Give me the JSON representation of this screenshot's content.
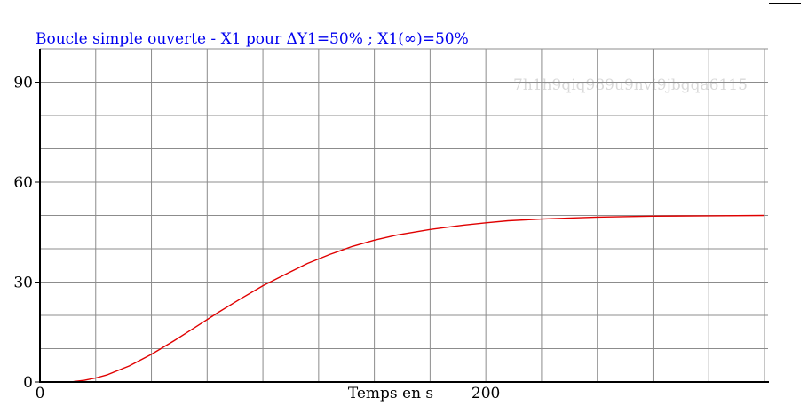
{
  "chart_data": {
    "type": "line",
    "title": "Boucle simple ouverte - X1 pour ΔY1=50% ; X1(∞)=50%",
    "xlabel": "Temps en s",
    "ylabel": "",
    "watermark": "7h1h9qiq989u9nvi9jbgqa6115",
    "xlim": [
      0,
      325
    ],
    "ylim": [
      0,
      100
    ],
    "x_ticks": [
      {
        "value": 0,
        "label": "0"
      },
      {
        "value": 200,
        "label": "200"
      }
    ],
    "y_ticks": [
      {
        "value": 0,
        "label": "0"
      },
      {
        "value": 30,
        "label": "30"
      },
      {
        "value": 60,
        "label": "60"
      },
      {
        "value": 90,
        "label": "90"
      }
    ],
    "x_grid_step": 25,
    "y_grid_step": 10,
    "grid": true,
    "series": [
      {
        "name": "",
        "color": "#e00000",
        "x": [
          0,
          10,
          15,
          20,
          25,
          30,
          40,
          50,
          60,
          70,
          80,
          90,
          100,
          110,
          120,
          130,
          140,
          150,
          160,
          175,
          190,
          200,
          210,
          225,
          250,
          275,
          300,
          325
        ],
        "y": [
          0,
          0,
          0.1,
          0.5,
          1.2,
          2.1,
          4.8,
          8.3,
          12.3,
          16.6,
          20.9,
          25.0,
          28.9,
          32.3,
          35.6,
          38.3,
          40.7,
          42.6,
          44.1,
          45.8,
          47.1,
          47.8,
          48.4,
          48.9,
          49.5,
          49.8,
          49.9,
          50.0
        ]
      }
    ],
    "colors": {
      "title": "#0000ee",
      "grid": "#8c8c8c",
      "axis": "#000000",
      "curve": "#e00000",
      "watermark": "#d9d9d9"
    }
  }
}
